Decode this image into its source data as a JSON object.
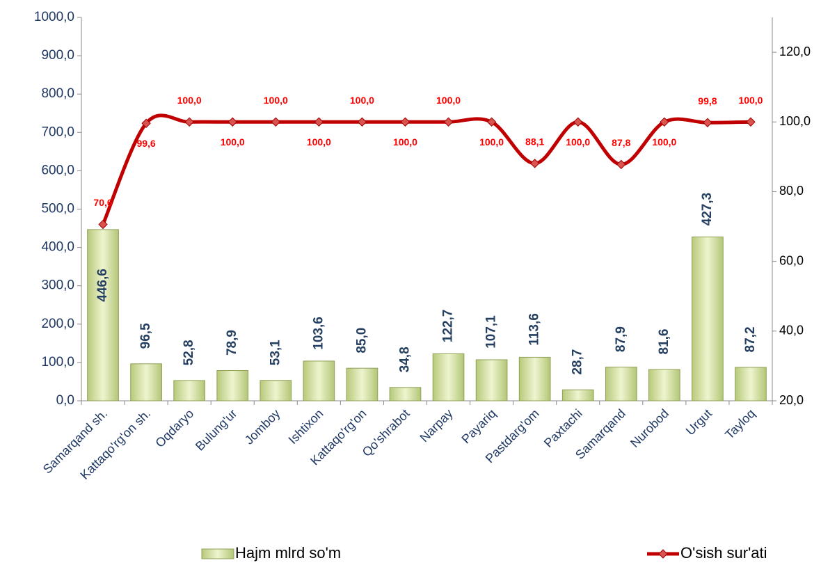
{
  "chart_data": {
    "type": "bar",
    "categories": [
      "Samarqand sh.",
      "Kattaqo'rg'on sh.",
      "Oqdaryo",
      "Bulung'ur",
      "Jomboy",
      "Ishtixon",
      "Kattaqo'rg'on",
      "Qo'shrabot",
      "Narpay",
      "Payariq",
      "Pastdarg'om",
      "Paxtachi",
      "Samarqand",
      "Nurobod",
      "Urgut",
      "Tayloq"
    ],
    "series": [
      {
        "name": "Hajm mlrd so'm",
        "type": "bar",
        "color": "#c9d88f",
        "values": [
          446.6,
          96.5,
          52.8,
          78.9,
          53.1,
          103.6,
          85.0,
          34.8,
          122.7,
          107.1,
          113.6,
          28.7,
          87.9,
          81.6,
          427.3,
          87.2
        ],
        "value_labels": [
          "446,6",
          "96,5",
          "52,8",
          "78,9",
          "53,1",
          "103,6",
          "85,0",
          "34,8",
          "122,7",
          "107,1",
          "113,6",
          "28,7",
          "87,9",
          "81,6",
          "427,3",
          "87,2"
        ]
      },
      {
        "name": "O'sish sur'ati",
        "type": "line",
        "axis": "y2",
        "color": "#c00000",
        "values": [
          70.6,
          99.6,
          100.0,
          100.0,
          100.0,
          100.0,
          100.0,
          100.0,
          100.0,
          100.0,
          88.1,
          100.0,
          87.8,
          100.0,
          99.8,
          100.0
        ],
        "value_labels": [
          "70,6",
          "99,6",
          "100,0",
          "100,0",
          "100,0",
          "100,0",
          "100,0",
          "100,0",
          "100,0",
          "100,0",
          "88,1",
          "100,0",
          "87,8",
          "100,0",
          "99,8",
          "100,0"
        ]
      }
    ],
    "ylim": [
      0,
      1000
    ],
    "yticks": [
      {
        "value": 0,
        "label": "0,0"
      },
      {
        "value": 100,
        "label": "100,0"
      },
      {
        "value": 200,
        "label": "200,0"
      },
      {
        "value": 300,
        "label": "300,0"
      },
      {
        "value": 400,
        "label": "400,0"
      },
      {
        "value": 500,
        "label": "500,0"
      },
      {
        "value": 600,
        "label": "600,0"
      },
      {
        "value": 700,
        "label": "700,0"
      },
      {
        "value": 800,
        "label": "800,0"
      },
      {
        "value": 900,
        "label": "900,0"
      },
      {
        "value": 1000,
        "label": "1000,0"
      }
    ],
    "y2lim": [
      20,
      130
    ],
    "y2ticks": [
      {
        "value": 20,
        "label": "20,0"
      },
      {
        "value": 40,
        "label": "40,0"
      },
      {
        "value": 60,
        "label": "60,0"
      },
      {
        "value": 80,
        "label": "80,0"
      },
      {
        "value": 100,
        "label": "100,0"
      },
      {
        "value": 120,
        "label": "120,0"
      }
    ],
    "grid": false,
    "legend": "bottom"
  }
}
